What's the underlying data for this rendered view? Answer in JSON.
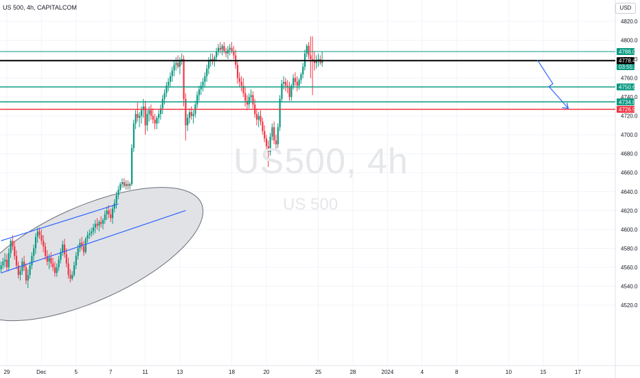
{
  "symbol_header": "US 500, 4h, CAPITALCOM",
  "currency_button": "USD",
  "watermark": {
    "primary": "US500, 4h",
    "secondary": "US 500"
  },
  "colors": {
    "up": "#089981",
    "down": "#f23645",
    "level_green": "#089981",
    "level_red": "#f23645",
    "price_line": "#000000",
    "trend": "#2962ff",
    "ellipse_fill": "#e1e2e6"
  },
  "chart_data": {
    "type": "candlestick",
    "timeframe": "4h",
    "y_ticks": [
      4520,
      4540,
      4560,
      4580,
      4600,
      4620,
      4640,
      4660,
      4680,
      4700,
      4720,
      4740,
      4760,
      4780,
      4800,
      4820
    ],
    "ylim": [
      4512,
      4830
    ],
    "x_ticks": [
      {
        "label": "29",
        "i": 3
      },
      {
        "label": "Dec",
        "i": 21
      },
      {
        "label": "5",
        "i": 39
      },
      {
        "label": "7",
        "i": 57
      },
      {
        "label": "11",
        "i": 75
      },
      {
        "label": "13",
        "i": 93
      },
      {
        "label": "18",
        "i": 120
      },
      {
        "label": "20",
        "i": 138
      },
      {
        "label": "25",
        "i": 165
      },
      {
        "label": "28",
        "i": 183
      },
      {
        "label": "2024",
        "i": 201
      },
      {
        "label": "4",
        "i": 219
      },
      {
        "label": "8",
        "i": 237
      },
      {
        "label": "10",
        "i": 264
      },
      {
        "label": "15",
        "i": 282
      },
      {
        "label": "17",
        "i": 300
      }
    ],
    "levels": [
      {
        "price": 4788.0,
        "label": "4788.0",
        "color": "#089981",
        "width": 1
      },
      {
        "price": 4779.3,
        "label": "4779.3",
        "extra": "03:55:24",
        "color": "#089981",
        "width": 0,
        "tag_only": true
      },
      {
        "price": 4778.4,
        "label": "4778.4",
        "color": "#000000",
        "width": 2
      },
      {
        "price": 4750.6,
        "label": "4750.6",
        "color": "#089981",
        "width": 1.5
      },
      {
        "price": 4734.8,
        "label": "4734.8",
        "color": "#089981",
        "width": 1.5
      },
      {
        "price": 4726.9,
        "label": "4726.9",
        "color": "#f23645",
        "width": 1.5
      }
    ],
    "channel_lines": [
      {
        "from": {
          "i": 0,
          "p": 4588
        },
        "to": {
          "i": 61,
          "p": 4627
        }
      },
      {
        "from": {
          "i": 0,
          "p": 4554
        },
        "to": {
          "i": 96,
          "p": 4620
        }
      }
    ],
    "projection": [
      {
        "i": 279,
        "p": 4779
      },
      {
        "i": 287,
        "p": 4754
      },
      {
        "i": 285,
        "p": 4751
      },
      {
        "i": 295,
        "p": 4728
      }
    ],
    "ellipse": {
      "center": {
        "i": 45,
        "p": 4574
      },
      "rx_bars": 90,
      "ry_price": 50,
      "rotate": -24
    },
    "candles": [
      [
        4558,
        4566,
        4554,
        4562
      ],
      [
        4562,
        4570,
        4558,
        4566
      ],
      [
        4566,
        4575,
        4560,
        4568
      ],
      [
        4568,
        4574,
        4556,
        4560
      ],
      [
        4560,
        4580,
        4556,
        4575
      ],
      [
        4575,
        4590,
        4570,
        4588
      ],
      [
        4588,
        4594,
        4578,
        4582
      ],
      [
        4582,
        4588,
        4568,
        4572
      ],
      [
        4572,
        4578,
        4558,
        4562
      ],
      [
        4562,
        4566,
        4548,
        4552
      ],
      [
        4552,
        4560,
        4546,
        4556
      ],
      [
        4556,
        4570,
        4552,
        4566
      ],
      [
        4566,
        4572,
        4556,
        4560
      ],
      [
        4560,
        4564,
        4542,
        4546
      ],
      [
        4546,
        4558,
        4538,
        4552
      ],
      [
        4552,
        4566,
        4548,
        4562
      ],
      [
        4562,
        4576,
        4558,
        4572
      ],
      [
        4572,
        4584,
        4566,
        4580
      ],
      [
        4580,
        4596,
        4574,
        4592
      ],
      [
        4592,
        4602,
        4586,
        4598
      ],
      [
        4598,
        4602,
        4590,
        4594
      ],
      [
        4594,
        4600,
        4584,
        4588
      ],
      [
        4588,
        4594,
        4576,
        4582
      ],
      [
        4582,
        4586,
        4568,
        4572
      ],
      [
        4572,
        4578,
        4562,
        4566
      ],
      [
        4566,
        4574,
        4558,
        4570
      ],
      [
        4570,
        4576,
        4560,
        4564
      ],
      [
        4564,
        4570,
        4556,
        4560
      ],
      [
        4560,
        4566,
        4550,
        4554
      ],
      [
        4554,
        4564,
        4550,
        4560
      ],
      [
        4560,
        4572,
        4556,
        4568
      ],
      [
        4568,
        4580,
        4564,
        4576
      ],
      [
        4576,
        4588,
        4572,
        4584
      ],
      [
        4584,
        4590,
        4570,
        4574
      ],
      [
        4574,
        4580,
        4560,
        4564
      ],
      [
        4564,
        4570,
        4548,
        4552
      ],
      [
        4552,
        4558,
        4544,
        4548
      ],
      [
        4548,
        4556,
        4546,
        4552
      ],
      [
        4552,
        4566,
        4550,
        4562
      ],
      [
        4562,
        4576,
        4558,
        4572
      ],
      [
        4572,
        4584,
        4568,
        4580
      ],
      [
        4580,
        4590,
        4576,
        4586
      ],
      [
        4586,
        4592,
        4578,
        4582
      ],
      [
        4582,
        4588,
        4572,
        4576
      ],
      [
        4576,
        4592,
        4574,
        4590
      ],
      [
        4590,
        4598,
        4586,
        4594
      ],
      [
        4594,
        4600,
        4590,
        4596
      ],
      [
        4596,
        4602,
        4592,
        4598
      ],
      [
        4598,
        4606,
        4594,
        4602
      ],
      [
        4602,
        4610,
        4596,
        4606
      ],
      [
        4606,
        4612,
        4600,
        4604
      ],
      [
        4604,
        4610,
        4598,
        4608
      ],
      [
        4608,
        4614,
        4602,
        4606
      ],
      [
        4606,
        4612,
        4600,
        4610
      ],
      [
        4610,
        4620,
        4606,
        4616
      ],
      [
        4616,
        4624,
        4610,
        4620
      ],
      [
        4620,
        4626,
        4612,
        4616
      ],
      [
        4616,
        4622,
        4608,
        4612
      ],
      [
        4612,
        4626,
        4606,
        4622
      ],
      [
        4622,
        4632,
        4618,
        4628
      ],
      [
        4628,
        4640,
        4622,
        4636
      ],
      [
        4636,
        4646,
        4632,
        4642
      ],
      [
        4642,
        4650,
        4640,
        4648
      ],
      [
        4648,
        4654,
        4644,
        4650
      ],
      [
        4650,
        4654,
        4644,
        4646
      ],
      [
        4646,
        4652,
        4642,
        4648
      ],
      [
        4648,
        4652,
        4642,
        4646
      ],
      [
        4646,
        4650,
        4642,
        4648
      ],
      [
        4648,
        4690,
        4646,
        4686
      ],
      [
        4686,
        4716,
        4682,
        4712
      ],
      [
        4712,
        4726,
        4706,
        4722
      ],
      [
        4722,
        4734,
        4714,
        4718
      ],
      [
        4718,
        4724,
        4708,
        4720
      ],
      [
        4720,
        4730,
        4712,
        4726
      ],
      [
        4726,
        4738,
        4718,
        4730
      ],
      [
        4730,
        4736,
        4700,
        4710
      ],
      [
        4710,
        4726,
        4704,
        4722
      ],
      [
        4722,
        4730,
        4714,
        4726
      ],
      [
        4726,
        4732,
        4716,
        4720
      ],
      [
        4720,
        4728,
        4712,
        4716
      ],
      [
        4716,
        4722,
        4706,
        4712
      ],
      [
        4712,
        4720,
        4706,
        4718
      ],
      [
        4718,
        4726,
        4712,
        4722
      ],
      [
        4722,
        4732,
        4716,
        4728
      ],
      [
        4728,
        4742,
        4722,
        4738
      ],
      [
        4738,
        4748,
        4732,
        4744
      ],
      [
        4744,
        4756,
        4740,
        4752
      ],
      [
        4752,
        4760,
        4746,
        4756
      ],
      [
        4756,
        4766,
        4750,
        4762
      ],
      [
        4762,
        4772,
        4756,
        4768
      ],
      [
        4768,
        4778,
        4762,
        4774
      ],
      [
        4774,
        4782,
        4768,
        4776
      ],
      [
        4776,
        4784,
        4770,
        4772
      ],
      [
        4772,
        4782,
        4764,
        4778
      ],
      [
        4778,
        4786,
        4774,
        4780
      ],
      [
        4780,
        4784,
        4730,
        4738
      ],
      [
        4738,
        4744,
        4694,
        4710
      ],
      [
        4710,
        4722,
        4704,
        4718
      ],
      [
        4718,
        4728,
        4712,
        4724
      ],
      [
        4724,
        4730,
        4716,
        4720
      ],
      [
        4720,
        4726,
        4712,
        4722
      ],
      [
        4722,
        4736,
        4718,
        4732
      ],
      [
        4732,
        4746,
        4728,
        4742
      ],
      [
        4742,
        4752,
        4736,
        4748
      ],
      [
        4748,
        4756,
        4742,
        4752
      ],
      [
        4752,
        4760,
        4746,
        4756
      ],
      [
        4756,
        4766,
        4750,
        4762
      ],
      [
        4762,
        4774,
        4756,
        4770
      ],
      [
        4770,
        4782,
        4764,
        4778
      ],
      [
        4778,
        4786,
        4772,
        4780
      ],
      [
        4780,
        4786,
        4774,
        4778
      ],
      [
        4778,
        4784,
        4772,
        4782
      ],
      [
        4782,
        4792,
        4778,
        4788
      ],
      [
        4788,
        4796,
        4784,
        4792
      ],
      [
        4792,
        4798,
        4786,
        4790
      ],
      [
        4790,
        4796,
        4784,
        4794
      ],
      [
        4794,
        4798,
        4786,
        4788
      ],
      [
        4788,
        4792,
        4782,
        4786
      ],
      [
        4786,
        4794,
        4780,
        4790
      ],
      [
        4790,
        4796,
        4784,
        4792
      ],
      [
        4792,
        4798,
        4786,
        4788
      ],
      [
        4788,
        4794,
        4780,
        4784
      ],
      [
        4784,
        4790,
        4770,
        4774
      ],
      [
        4774,
        4778,
        4754,
        4760
      ],
      [
        4760,
        4766,
        4750,
        4756
      ],
      [
        4756,
        4762,
        4746,
        4752
      ],
      [
        4752,
        4760,
        4740,
        4744
      ],
      [
        4744,
        4750,
        4730,
        4736
      ],
      [
        4736,
        4742,
        4726,
        4732
      ],
      [
        4732,
        4744,
        4728,
        4740
      ],
      [
        4740,
        4748,
        4734,
        4742
      ],
      [
        4742,
        4746,
        4728,
        4732
      ],
      [
        4732,
        4738,
        4718,
        4722
      ],
      [
        4722,
        4728,
        4710,
        4716
      ],
      [
        4716,
        4724,
        4708,
        4720
      ],
      [
        4720,
        4726,
        4710,
        4714
      ],
      [
        4714,
        4718,
        4700,
        4704
      ],
      [
        4704,
        4710,
        4692,
        4696
      ],
      [
        4696,
        4700,
        4682,
        4688
      ],
      [
        4688,
        4694,
        4666,
        4682
      ],
      [
        4682,
        4702,
        4678,
        4698
      ],
      [
        4698,
        4712,
        4694,
        4708
      ],
      [
        4708,
        4714,
        4690,
        4694
      ],
      [
        4694,
        4700,
        4684,
        4690
      ],
      [
        4690,
        4712,
        4686,
        4708
      ],
      [
        4708,
        4742,
        4704,
        4738
      ],
      [
        4738,
        4758,
        4734,
        4754
      ],
      [
        4754,
        4762,
        4748,
        4756
      ],
      [
        4756,
        4760,
        4746,
        4752
      ],
      [
        4752,
        4758,
        4744,
        4750
      ],
      [
        4750,
        4756,
        4736,
        4740
      ],
      [
        4740,
        4754,
        4736,
        4752
      ],
      [
        4752,
        4764,
        4748,
        4760
      ],
      [
        4760,
        4766,
        4752,
        4756
      ],
      [
        4756,
        4762,
        4746,
        4752
      ],
      [
        4752,
        4760,
        4748,
        4758
      ],
      [
        4758,
        4766,
        4754,
        4764
      ],
      [
        4764,
        4776,
        4760,
        4772
      ],
      [
        4772,
        4790,
        4768,
        4786
      ],
      [
        4786,
        4796,
        4782,
        4794
      ],
      [
        4794,
        4798,
        4780,
        4784
      ],
      [
        4784,
        4804,
        4760,
        4780
      ],
      [
        4780,
        4804,
        4742,
        4778
      ],
      [
        4778,
        4788,
        4768,
        4776
      ],
      [
        4776,
        4784,
        4770,
        4778
      ],
      [
        4778,
        4786,
        4772,
        4780
      ],
      [
        4780,
        4784,
        4774,
        4776
      ],
      [
        4776,
        4788,
        4772,
        4779
      ]
    ]
  }
}
